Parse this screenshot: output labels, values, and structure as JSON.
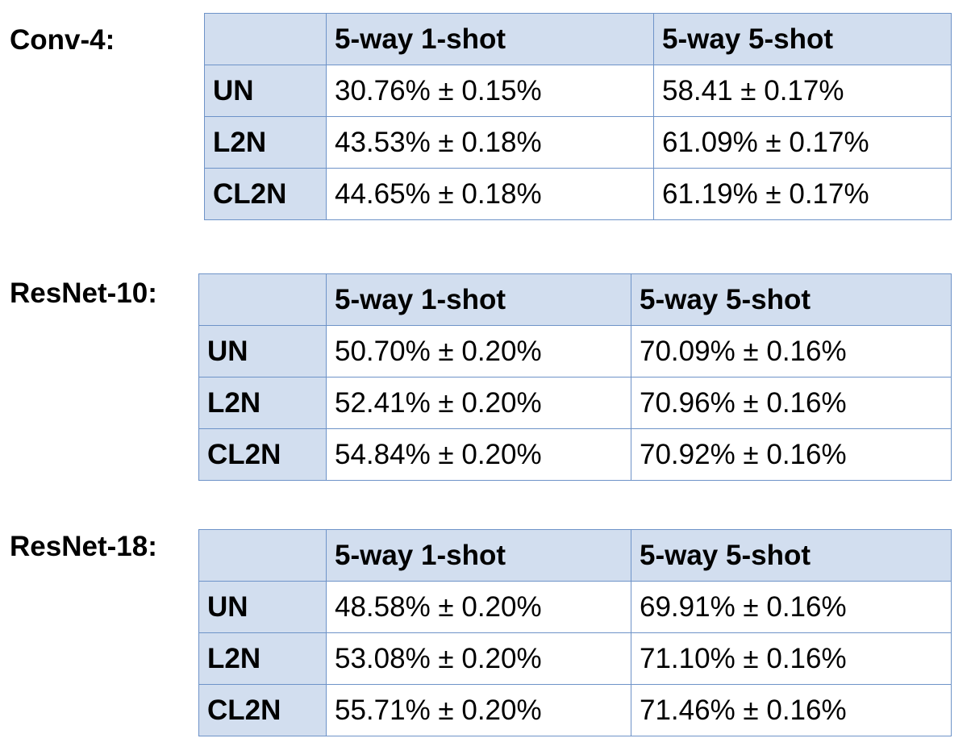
{
  "blocks": [
    {
      "label": "Conv-4:",
      "columns": [
        "",
        "5-way 1-shot",
        "5-way 5-shot"
      ],
      "rows": [
        {
          "name": "UN",
          "one_shot": "30.76% ± 0.15%",
          "five_shot": "58.41 ± 0.17%"
        },
        {
          "name": "L2N",
          "one_shot": "43.53% ± 0.18%",
          "five_shot": "61.09% ± 0.17%"
        },
        {
          "name": "CL2N",
          "one_shot": "44.65% ± 0.18%",
          "five_shot": "61.19% ± 0.17%"
        }
      ]
    },
    {
      "label": "ResNet-10:",
      "columns": [
        "",
        "5-way 1-shot",
        "5-way 5-shot"
      ],
      "rows": [
        {
          "name": "UN",
          "one_shot": "50.70% ± 0.20%",
          "five_shot": "70.09% ± 0.16%"
        },
        {
          "name": "L2N",
          "one_shot": "52.41% ± 0.20%",
          "five_shot": "70.96% ± 0.16%"
        },
        {
          "name": "CL2N",
          "one_shot": "54.84% ± 0.20%",
          "five_shot": "70.92% ± 0.16%"
        }
      ]
    },
    {
      "label": "ResNet-18:",
      "columns": [
        "",
        "5-way 1-shot",
        "5-way 5-shot"
      ],
      "rows": [
        {
          "name": "UN",
          "one_shot": "48.58% ± 0.20%",
          "five_shot": "69.91% ± 0.16%"
        },
        {
          "name": "L2N",
          "one_shot": "53.08% ± 0.20%",
          "five_shot": "71.10% ± 0.16%"
        },
        {
          "name": "CL2N",
          "one_shot": "55.71% ± 0.20%",
          "five_shot": "71.46% ± 0.16%"
        }
      ]
    }
  ],
  "colors": {
    "header_fill": "#d2deef",
    "border": "#6e93c8",
    "cell_fill": "#ffffff",
    "text": "#000000"
  }
}
